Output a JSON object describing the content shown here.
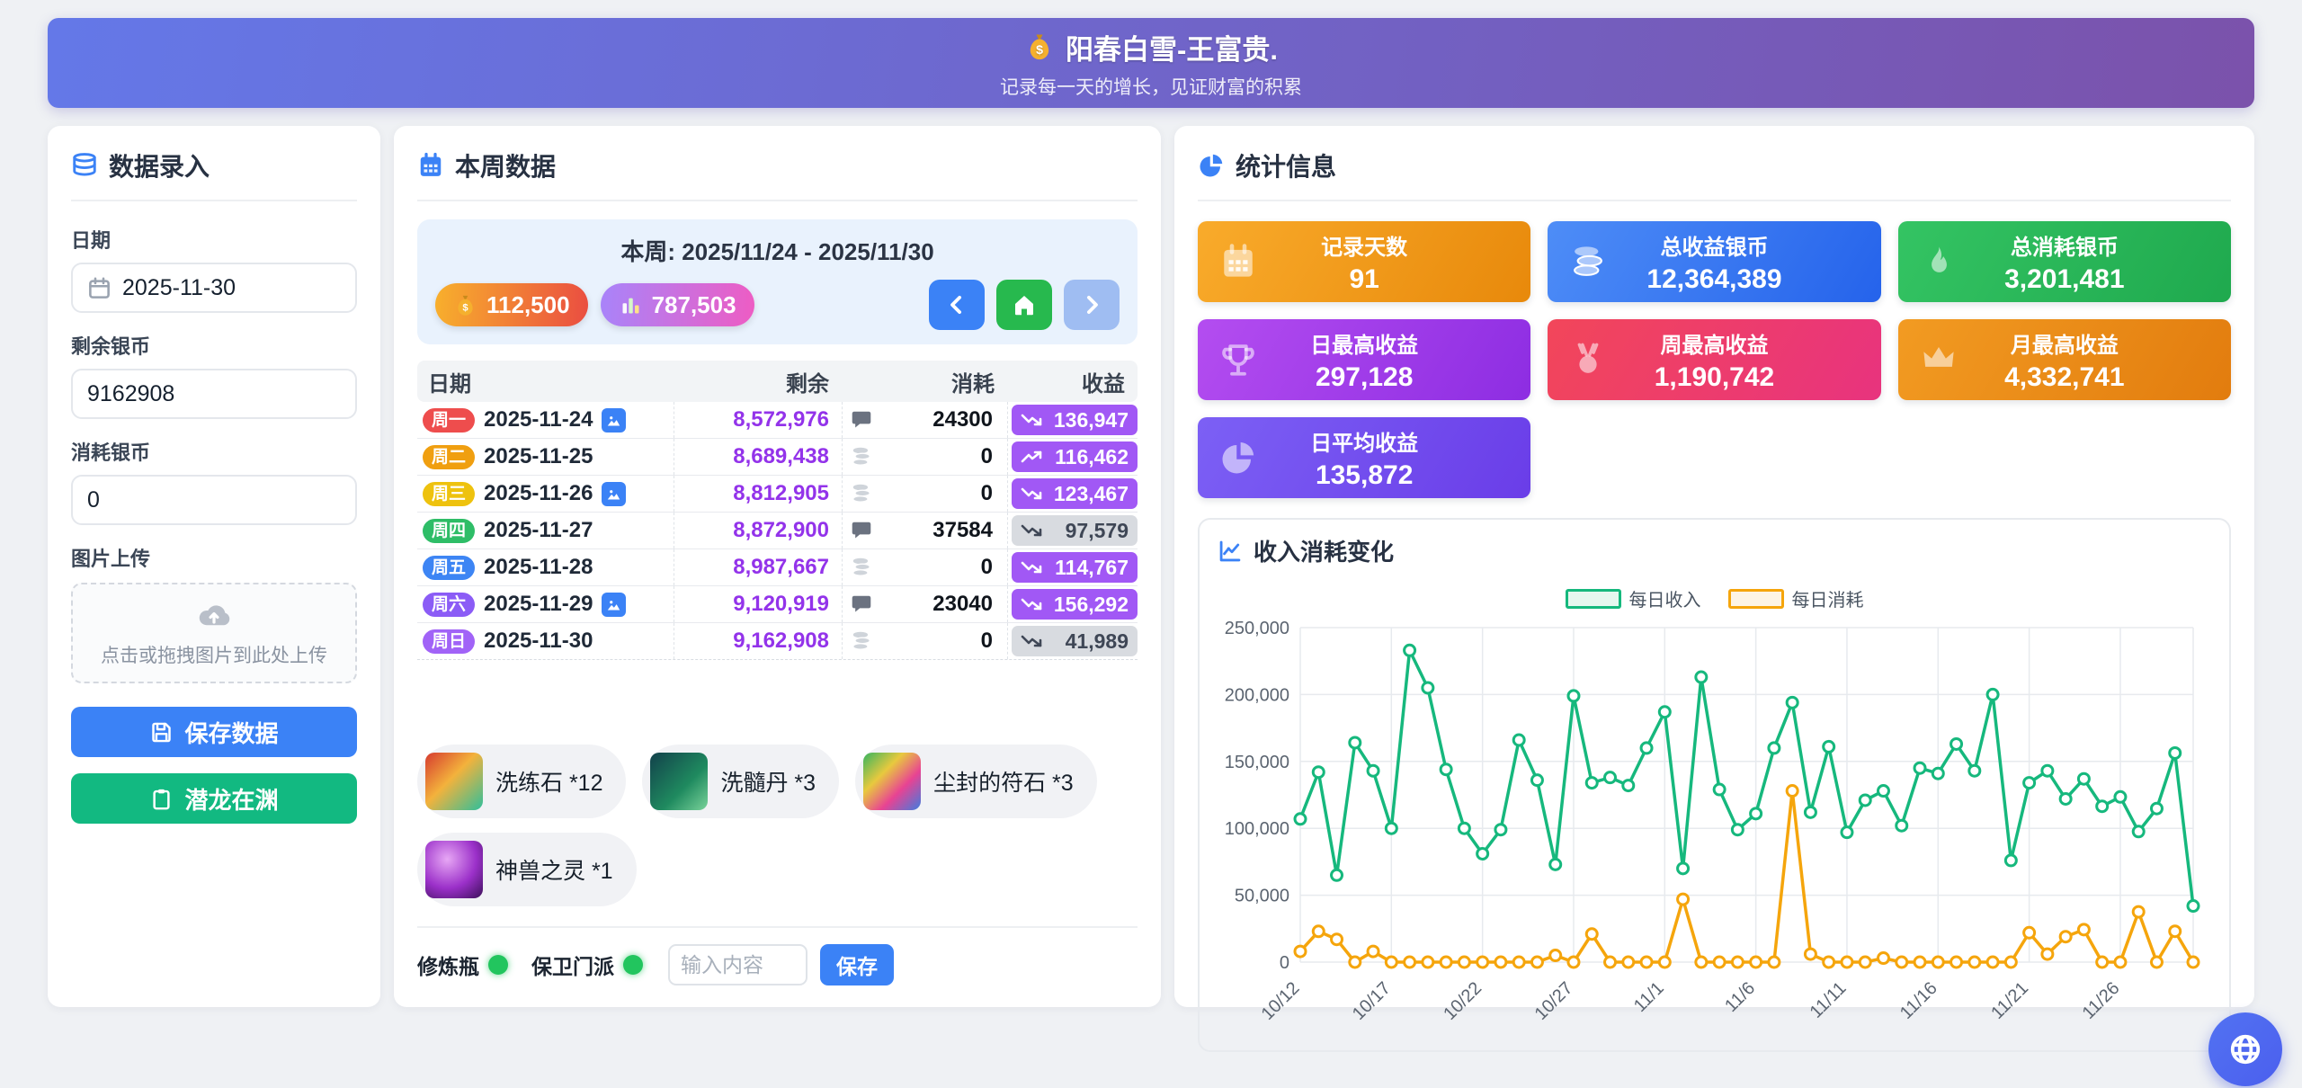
{
  "header": {
    "icon": "money-bag-icon",
    "title": "阳春白雪-王富贵.",
    "subtitle": "记录每一天的增长，见证财富的积累"
  },
  "entry_panel": {
    "title": "数据录入",
    "date_label": "日期",
    "date_value": "2025-11-30",
    "remain_label": "剩余银币",
    "remain_value": "9162908",
    "consume_label": "消耗银币",
    "consume_value": "0",
    "upload_label": "图片上传",
    "upload_hint": "点击或拖拽图片到此处上传",
    "save_button": "保存数据",
    "dragon_button": "潜龙在渊"
  },
  "week_panel": {
    "title": "本周数据",
    "week_range": "本周: 2025/11/24 - 2025/11/30",
    "income_pill": "112,500",
    "stat_pill": "787,503",
    "table": {
      "headers": {
        "date": "日期",
        "remain": "剩余",
        "consume": "消耗",
        "income": "收益"
      },
      "rows": [
        {
          "weekday": "周一",
          "weekday_color": "#ee4d4d",
          "date": "2025-11-24",
          "has_image": true,
          "remain": "8,572,976",
          "consume": "24300",
          "consume_icon": "speech-bubble-icon",
          "income": "136,947",
          "income_variant": "purple",
          "trend": "down"
        },
        {
          "weekday": "周二",
          "weekday_color": "#f09f10",
          "date": "2025-11-25",
          "has_image": false,
          "remain": "8,689,438",
          "consume": "0",
          "consume_icon": "coins-icon",
          "income": "116,462",
          "income_variant": "purple",
          "trend": "up"
        },
        {
          "weekday": "周三",
          "weekday_color": "#eec20e",
          "date": "2025-11-26",
          "has_image": true,
          "remain": "8,812,905",
          "consume": "0",
          "consume_icon": "coins-icon",
          "income": "123,467",
          "income_variant": "purple",
          "trend": "down"
        },
        {
          "weekday": "周四",
          "weekday_color": "#2ebd67",
          "date": "2025-11-27",
          "has_image": false,
          "remain": "8,872,900",
          "consume": "37584",
          "consume_icon": "speech-bubble-icon",
          "income": "97,579",
          "income_variant": "gray",
          "trend": "down"
        },
        {
          "weekday": "周五",
          "weekday_color": "#3d85f4",
          "date": "2025-11-28",
          "has_image": false,
          "remain": "8,987,667",
          "consume": "0",
          "consume_icon": "coins-icon",
          "income": "114,767",
          "income_variant": "purple",
          "trend": "down"
        },
        {
          "weekday": "周六",
          "weekday_color": "#8b5cf6",
          "date": "2025-11-29",
          "has_image": true,
          "remain": "9,120,919",
          "consume": "23040",
          "consume_icon": "speech-bubble-icon",
          "income": "156,292",
          "income_variant": "purple",
          "trend": "down"
        },
        {
          "weekday": "周日",
          "weekday_color": "#a163f7",
          "date": "2025-11-30",
          "has_image": false,
          "remain": "9,162,908",
          "consume": "0",
          "consume_icon": "coins-icon",
          "income": "41,989",
          "income_variant": "gray",
          "trend": "down"
        }
      ]
    },
    "item_rows": [
      [
        {
          "label": "洗练石 *12",
          "img_class": "gem-red"
        },
        {
          "label": "洗髓丹 *3",
          "img_class": "gourd-green"
        },
        {
          "label": "尘封的符石 *3",
          "img_class": "runestone-rainbow"
        }
      ],
      [
        {
          "label": "神兽之灵 *1",
          "img_class": "orb-purple"
        }
      ]
    ],
    "footer": {
      "flag1": "修炼瓶",
      "flag2": "保卫门派",
      "input_placeholder": "输入内容",
      "save_button": "保存"
    }
  },
  "stats_panel": {
    "title": "统计信息",
    "cards": [
      {
        "label": "记录天数",
        "value": "91",
        "icon": "calendar-icon",
        "variant": "orange"
      },
      {
        "label": "总收益银币",
        "value": "12,364,389",
        "icon": "coins-icon",
        "variant": "blue"
      },
      {
        "label": "总消耗银币",
        "value": "3,201,481",
        "icon": "flame-icon",
        "variant": "green"
      },
      {
        "label": "日最高收益",
        "value": "297,128",
        "icon": "trophy-icon",
        "variant": "purple"
      },
      {
        "label": "周最高收益",
        "value": "1,190,742",
        "icon": "medal-icon",
        "variant": "red"
      },
      {
        "label": "月最高收益",
        "value": "4,332,741",
        "icon": "crown-icon",
        "variant": "amber"
      },
      {
        "label": "日平均收益",
        "value": "135,872",
        "icon": "pie-icon",
        "variant": "violet"
      }
    ]
  },
  "chart_card": {
    "title": "收入消耗变化"
  },
  "chart_data": {
    "type": "line",
    "title": "收入消耗变化",
    "x": [
      "10/12",
      "10/13",
      "10/14",
      "10/15",
      "10/16",
      "10/17",
      "10/18",
      "10/19",
      "10/20",
      "10/21",
      "10/22",
      "10/23",
      "10/24",
      "10/25",
      "10/26",
      "10/27",
      "10/28",
      "10/29",
      "10/30",
      "10/31",
      "11/1",
      "11/2",
      "11/3",
      "11/4",
      "11/5",
      "11/6",
      "11/7",
      "11/8",
      "11/9",
      "11/10",
      "11/11",
      "11/12",
      "11/13",
      "11/14",
      "11/15",
      "11/16",
      "11/17",
      "11/18",
      "11/19",
      "11/20",
      "11/21",
      "11/22",
      "11/23",
      "11/24",
      "11/25",
      "11/26",
      "11/27",
      "11/28",
      "11/29",
      "11/30"
    ],
    "x_tick_every": 5,
    "series": [
      {
        "name": "每日收入",
        "color": "#16b87d",
        "values": [
          107000,
          142000,
          65000,
          164000,
          143000,
          100000,
          233000,
          205000,
          144000,
          100000,
          81000,
          99000,
          166000,
          136000,
          73000,
          199000,
          134000,
          138000,
          132000,
          160000,
          187000,
          70000,
          213000,
          129000,
          99000,
          111000,
          160000,
          194000,
          112000,
          161000,
          97000,
          121000,
          128000,
          102000,
          145000,
          141000,
          163000,
          143000,
          200000,
          76000,
          134000,
          143000,
          122000,
          136947,
          116462,
          123467,
          97579,
          114767,
          156292,
          41989
        ]
      },
      {
        "name": "每日消耗",
        "color": "#f5a50c",
        "values": [
          8000,
          23000,
          17000,
          0,
          8000,
          0,
          0,
          0,
          0,
          0,
          0,
          0,
          0,
          0,
          5000,
          0,
          21000,
          0,
          0,
          0,
          0,
          47000,
          0,
          0,
          0,
          0,
          0,
          128000,
          6000,
          0,
          0,
          0,
          3000,
          0,
          0,
          0,
          0,
          0,
          0,
          0,
          22000,
          6000,
          19000,
          24300,
          0,
          0,
          37584,
          0,
          23040,
          0
        ]
      }
    ],
    "ylim": [
      0,
      250000
    ],
    "ytick_step": 50000,
    "grid": true,
    "legend_position": "top-center"
  }
}
